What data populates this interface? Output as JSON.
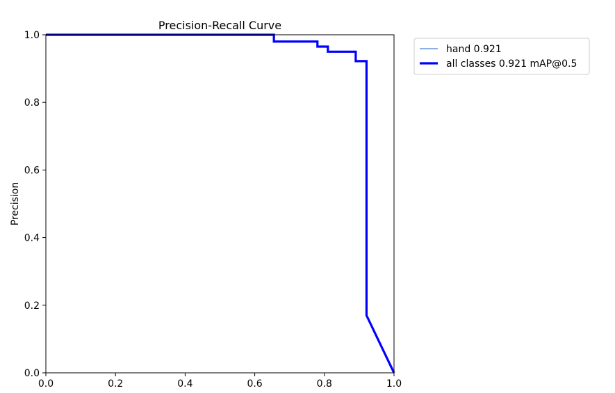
{
  "chart_data": {
    "type": "line",
    "title": "Precision-Recall Curve",
    "xlabel": "",
    "ylabel": "Precision",
    "xlim": [
      0.0,
      1.0
    ],
    "ylim": [
      0.0,
      1.0
    ],
    "xticks": [
      "0.0",
      "0.2",
      "0.4",
      "0.6",
      "0.8",
      "1.0"
    ],
    "yticks": [
      "0.0",
      "0.2",
      "0.4",
      "0.6",
      "0.8",
      "1.0"
    ],
    "grid": false,
    "legend_position": "outside-top-right",
    "series": [
      {
        "name": "hand 0.921",
        "color": "#1f5fbf",
        "line": "thin",
        "x": [
          0.0,
          0.655,
          0.655,
          0.78,
          0.78,
          0.81,
          0.81,
          0.89,
          0.89,
          0.921,
          0.921,
          1.0
        ],
        "y": [
          1.0,
          1.0,
          0.98,
          0.98,
          0.965,
          0.965,
          0.95,
          0.95,
          0.922,
          0.922,
          0.17,
          0.0
        ]
      },
      {
        "name": "all classes 0.921 mAP@0.5",
        "color": "#0000ff",
        "line": "thick",
        "x": [
          0.0,
          0.655,
          0.655,
          0.78,
          0.78,
          0.81,
          0.81,
          0.89,
          0.89,
          0.921,
          0.921,
          1.0
        ],
        "y": [
          1.0,
          1.0,
          0.98,
          0.98,
          0.965,
          0.965,
          0.95,
          0.95,
          0.922,
          0.922,
          0.17,
          0.0
        ]
      }
    ]
  }
}
